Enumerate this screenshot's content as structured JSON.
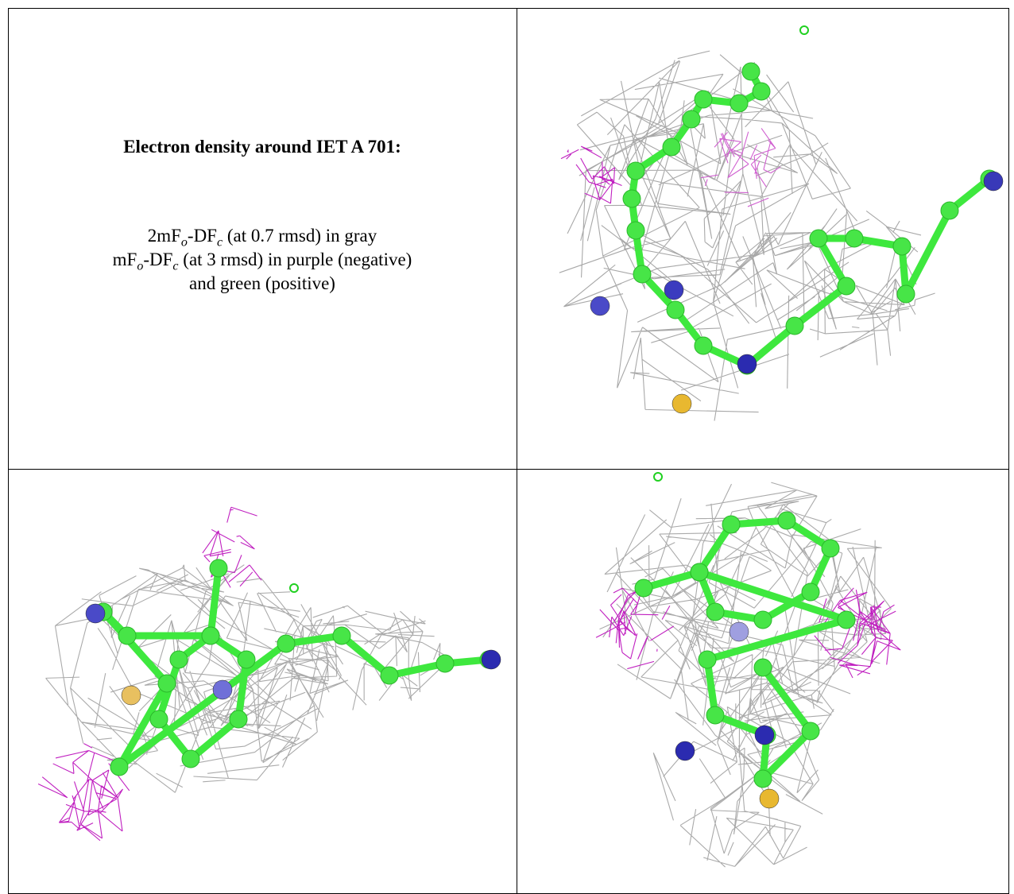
{
  "panel_text": {
    "title": "Electron density around IET A 701:",
    "lines": [
      [
        "2mF",
        "o",
        "-DF",
        "c",
        " (at 0.7 rmsd) in gray"
      ],
      [
        "mF",
        "o",
        "-DF",
        "c",
        " (at 3 rmsd) in purple (negative)"
      ],
      [
        "and green (positive)"
      ]
    ]
  }
}
